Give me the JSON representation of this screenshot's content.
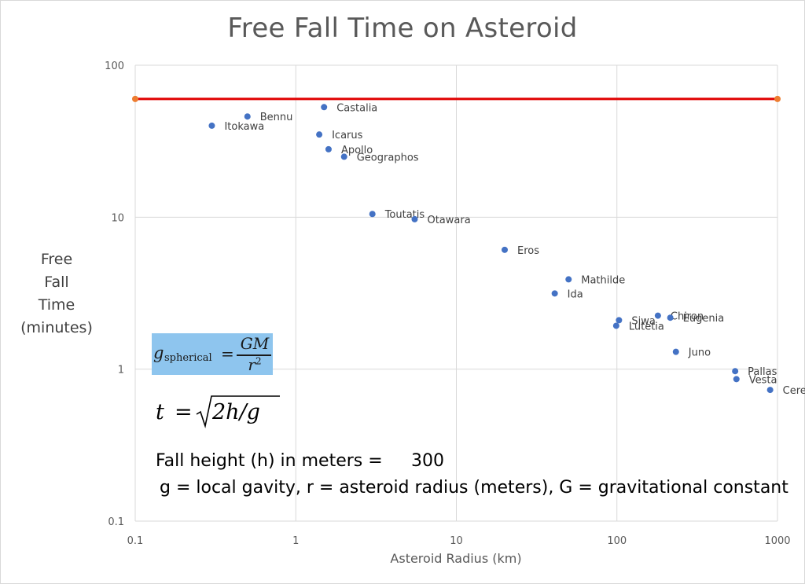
{
  "title": "Free Fall Time on Asteroid",
  "y_title_lines": [
    "Free",
    "Fall",
    "Time",
    "(minutes)"
  ],
  "x_title": "Asteroid Radius (km)",
  "formula_gravity": {
    "lhs": "g",
    "subscript": "spherical",
    "numerator": "GM",
    "denominator": "r",
    "exponent": "2"
  },
  "formula_fall_time": {
    "lhs": "t",
    "equals": "=",
    "radicand": "2h/g"
  },
  "fall_height_label": "Fall height (h) in meters =",
  "fall_height_value": "300",
  "legend_text": "g = local gavity, r = asteroid radius (meters), G = gravitational constant",
  "colors": {
    "points": "#4472c4",
    "reference_line": "#e00000",
    "reference_ends": "#ed7d31",
    "grid": "#d9d9d9",
    "formula_box": "#8ec5ee"
  },
  "chart_data": {
    "type": "scatter",
    "title": "Free Fall Time on Asteroid",
    "xlabel": "Asteroid Radius (km)",
    "ylabel": "Free Fall Time (minutes)",
    "x_scale": "log",
    "y_scale": "log",
    "xlim": [
      0.1,
      1000
    ],
    "ylim": [
      0.1,
      100
    ],
    "x_ticks": [
      "0.1",
      "1",
      "10",
      "100",
      "1000"
    ],
    "y_ticks": [
      "0.1",
      "1",
      "10",
      "100"
    ],
    "grid": true,
    "points": [
      {
        "label": "Itokawa",
        "x": 0.3,
        "y": 40
      },
      {
        "label": "Bennu",
        "x": 0.5,
        "y": 46
      },
      {
        "label": "Castalia",
        "x": 1.5,
        "y": 53
      },
      {
        "label": "Icarus",
        "x": 1.4,
        "y": 35
      },
      {
        "label": "Apollo",
        "x": 1.6,
        "y": 28
      },
      {
        "label": "Geographos",
        "x": 2.0,
        "y": 25
      },
      {
        "label": "Toutatis",
        "x": 3.0,
        "y": 10.5
      },
      {
        "label": "Otawara",
        "x": 5.5,
        "y": 9.7
      },
      {
        "label": "Eros",
        "x": 20,
        "y": 6.1
      },
      {
        "label": "Mathilde",
        "x": 50,
        "y": 3.9
      },
      {
        "label": "Ida",
        "x": 41,
        "y": 3.15
      },
      {
        "label": "Siwa",
        "x": 103,
        "y": 2.1
      },
      {
        "label": "Lutetia",
        "x": 99,
        "y": 1.93
      },
      {
        "label": "Chiron",
        "x": 180,
        "y": 2.25
      },
      {
        "label": "Eugenia",
        "x": 215,
        "y": 2.18
      },
      {
        "label": "Juno",
        "x": 233,
        "y": 1.3
      },
      {
        "label": "Pallas",
        "x": 545,
        "y": 0.97
      },
      {
        "label": "Vesta",
        "x": 555,
        "y": 0.86
      },
      {
        "label": "Ceres",
        "x": 900,
        "y": 0.73
      }
    ],
    "reference_line": {
      "y": 60,
      "x": [
        0.1,
        1000
      ]
    }
  }
}
